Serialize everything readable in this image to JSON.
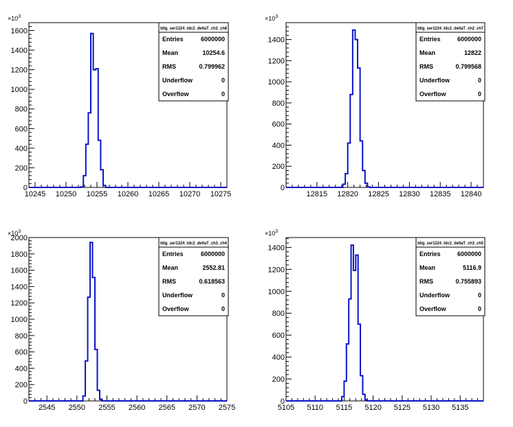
{
  "chart_data": [
    {
      "type": "histogram",
      "stat_title": "tdig_ser1224_tdc2_deltaT_ch2_ch8",
      "stats": [
        {
          "label": "Entries",
          "value": "6000000"
        },
        {
          "label": "Mean",
          "value": "10254.6"
        },
        {
          "label": "RMS",
          "value": "0.799962"
        },
        {
          "label": "Underflow",
          "value": "0"
        },
        {
          "label": "Overflow",
          "value": "0"
        }
      ],
      "xlim": [
        10244,
        10276
      ],
      "ylim": [
        0,
        1680
      ],
      "y_multiplier": "×10",
      "y_exponent": "3",
      "x_major_ticks": [
        10245,
        10250,
        10255,
        10260,
        10265,
        10270,
        10275
      ],
      "x_major_labels": [
        "10245",
        "10250",
        "10255",
        "10260",
        "10265",
        "10270",
        "10275"
      ],
      "y_major_ticks": [
        0,
        200,
        400,
        600,
        800,
        1000,
        1200,
        1400,
        1600
      ],
      "y_major_labels": [
        "0",
        "200",
        "400",
        "600",
        "800",
        "1000",
        "1200",
        "1400",
        "1600"
      ],
      "bins": [
        {
          "x0": 10252.4,
          "x1": 10252.8,
          "y": 5
        },
        {
          "x0": 10252.8,
          "x1": 10253.2,
          "y": 120
        },
        {
          "x0": 10253.2,
          "x1": 10253.6,
          "y": 440
        },
        {
          "x0": 10253.6,
          "x1": 10254.0,
          "y": 760
        },
        {
          "x0": 10254.0,
          "x1": 10254.4,
          "y": 1570
        },
        {
          "x0": 10254.4,
          "x1": 10254.8,
          "y": 1200
        },
        {
          "x0": 10254.8,
          "x1": 10255.2,
          "y": 1210
        },
        {
          "x0": 10255.2,
          "x1": 10255.6,
          "y": 480
        },
        {
          "x0": 10255.6,
          "x1": 10256.0,
          "y": 180
        },
        {
          "x0": 10256.0,
          "x1": 10256.4,
          "y": 20
        }
      ]
    },
    {
      "type": "histogram",
      "stat_title": "tdig_ser1224_tdc2_deltaT_ch2_ch7",
      "stats": [
        {
          "label": "Entries",
          "value": "6000000"
        },
        {
          "label": "Mean",
          "value": "12822"
        },
        {
          "label": "RMS",
          "value": "0.799568"
        },
        {
          "label": "Underflow",
          "value": "0"
        },
        {
          "label": "Overflow",
          "value": "0"
        }
      ],
      "xlim": [
        12810,
        12842
      ],
      "ylim": [
        0,
        1560
      ],
      "y_multiplier": "×10",
      "y_exponent": "3",
      "x_major_ticks": [
        12815,
        12820,
        12825,
        12830,
        12835,
        12840
      ],
      "x_major_labels": [
        "12815",
        "12820",
        "12825",
        "12830",
        "12835",
        "12840"
      ],
      "y_major_ticks": [
        0,
        200,
        400,
        600,
        800,
        1000,
        1200,
        1400
      ],
      "y_major_labels": [
        "0",
        "200",
        "400",
        "600",
        "800",
        "1000",
        "1200",
        "1400"
      ],
      "bins": [
        {
          "x0": 12819.2,
          "x1": 12819.6,
          "y": 30
        },
        {
          "x0": 12819.6,
          "x1": 12820.0,
          "y": 130
        },
        {
          "x0": 12820.0,
          "x1": 12820.4,
          "y": 420
        },
        {
          "x0": 12820.4,
          "x1": 12820.8,
          "y": 880
        },
        {
          "x0": 12820.8,
          "x1": 12821.2,
          "y": 1490
        },
        {
          "x0": 12821.2,
          "x1": 12821.6,
          "y": 1400
        },
        {
          "x0": 12821.6,
          "x1": 12822.0,
          "y": 1130
        },
        {
          "x0": 12822.0,
          "x1": 12822.4,
          "y": 440
        },
        {
          "x0": 12822.4,
          "x1": 12822.8,
          "y": 160
        },
        {
          "x0": 12822.8,
          "x1": 12823.2,
          "y": 40
        },
        {
          "x0": 12823.2,
          "x1": 12823.6,
          "y": 5
        }
      ]
    },
    {
      "type": "histogram",
      "stat_title": "tdig_ser1224_tdc2_deltaT_ch3_ch4",
      "stats": [
        {
          "label": "Entries",
          "value": "6000000"
        },
        {
          "label": "Mean",
          "value": "2552.81"
        },
        {
          "label": "RMS",
          "value": "0.618563"
        },
        {
          "label": "Underflow",
          "value": "0"
        },
        {
          "label": "Overflow",
          "value": "0"
        }
      ],
      "xlim": [
        2542,
        2575
      ],
      "ylim": [
        0,
        2000
      ],
      "y_multiplier": "×10",
      "y_exponent": "3",
      "x_major_ticks": [
        2545,
        2550,
        2555,
        2560,
        2565,
        2570,
        2575
      ],
      "x_major_labels": [
        "2545",
        "2550",
        "2555",
        "2560",
        "2565",
        "2570",
        "2575"
      ],
      "y_major_ticks": [
        0,
        200,
        400,
        600,
        800,
        1000,
        1200,
        1400,
        1600,
        1800,
        2000
      ],
      "y_major_labels": [
        "0",
        "200",
        "400",
        "600",
        "800",
        "1000",
        "1200",
        "1400",
        "1600",
        "1800",
        "2000"
      ],
      "bins": [
        {
          "x0": 2551.0,
          "x1": 2551.4,
          "y": 60
        },
        {
          "x0": 2551.4,
          "x1": 2551.8,
          "y": 490
        },
        {
          "x0": 2551.8,
          "x1": 2552.2,
          "y": 1270
        },
        {
          "x0": 2552.2,
          "x1": 2552.6,
          "y": 1940
        },
        {
          "x0": 2552.6,
          "x1": 2553.0,
          "y": 1510
        },
        {
          "x0": 2553.0,
          "x1": 2553.4,
          "y": 630
        },
        {
          "x0": 2553.4,
          "x1": 2553.8,
          "y": 130
        },
        {
          "x0": 2553.8,
          "x1": 2554.2,
          "y": 20
        }
      ]
    },
    {
      "type": "histogram",
      "stat_title": "tdig_ser1224_tdc2_deltaT_ch3_ch5",
      "stats": [
        {
          "label": "Entries",
          "value": "6000000"
        },
        {
          "label": "Mean",
          "value": "5116.9"
        },
        {
          "label": "RMS",
          "value": "0.755893"
        },
        {
          "label": "Underflow",
          "value": "0"
        },
        {
          "label": "Overflow",
          "value": "0"
        }
      ],
      "xlim": [
        5105,
        5139
      ],
      "ylim": [
        0,
        1490
      ],
      "y_multiplier": "×10",
      "y_exponent": "3",
      "x_major_ticks": [
        5105,
        5110,
        5115,
        5120,
        5125,
        5130,
        5135
      ],
      "x_major_labels": [
        "5105",
        "5110",
        "5115",
        "5120",
        "5125",
        "5130",
        "5135"
      ],
      "y_major_ticks": [
        0,
        200,
        400,
        600,
        800,
        1000,
        1200,
        1400
      ],
      "y_major_labels": [
        "0",
        "200",
        "400",
        "600",
        "800",
        "1000",
        "1200",
        "1400"
      ],
      "bins": [
        {
          "x0": 5114.6,
          "x1": 5115.0,
          "y": 40
        },
        {
          "x0": 5115.0,
          "x1": 5115.4,
          "y": 180
        },
        {
          "x0": 5115.4,
          "x1": 5115.8,
          "y": 520
        },
        {
          "x0": 5115.8,
          "x1": 5116.2,
          "y": 930
        },
        {
          "x0": 5116.2,
          "x1": 5116.6,
          "y": 1420
        },
        {
          "x0": 5116.6,
          "x1": 5117.0,
          "y": 1190
        },
        {
          "x0": 5117.0,
          "x1": 5117.4,
          "y": 1330
        },
        {
          "x0": 5117.4,
          "x1": 5117.8,
          "y": 700
        },
        {
          "x0": 5117.8,
          "x1": 5118.2,
          "y": 230
        },
        {
          "x0": 5118.2,
          "x1": 5118.6,
          "y": 60
        },
        {
          "x0": 5118.6,
          "x1": 5119.0,
          "y": 10
        }
      ]
    }
  ]
}
